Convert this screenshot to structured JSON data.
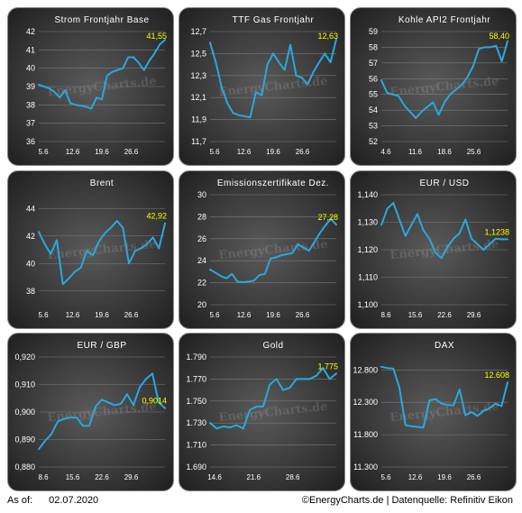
{
  "footer": {
    "as_of_label": "As of:",
    "as_of_date": "02.07.2020",
    "source": "©EnergyCharts.de | Datenquelle: Refinitiv Eikon"
  },
  "watermark": "EnergyCharts.de",
  "colors": {
    "line": "#29a8e0",
    "last_value": "#ffff00",
    "text": "#ffffff",
    "grid": "#7a7a7a"
  },
  "chart_data": [
    {
      "type": "line",
      "title": "Strom Frontjahr Base",
      "x_ticks": [
        "5.6",
        "12.6",
        "19.6",
        "26.6"
      ],
      "y_ticks": [
        "36",
        "37",
        "38",
        "39",
        "40",
        "41",
        "42"
      ],
      "ylim": [
        36,
        42
      ],
      "last_label": "41,55",
      "values": [
        39.1,
        39.0,
        38.9,
        38.7,
        38.4,
        38.8,
        38.1,
        38.0,
        37.95,
        37.9,
        37.8,
        38.4,
        38.3,
        39.6,
        39.8,
        39.9,
        40.0,
        40.6,
        40.6,
        40.3,
        39.9,
        40.4,
        40.8,
        41.3,
        41.55
      ]
    },
    {
      "type": "line",
      "title": "TTF Gas Frontjahr",
      "x_ticks": [
        "5.6",
        "12.6",
        "19.6",
        "26.6"
      ],
      "y_ticks": [
        "11,7",
        "11,9",
        "12,1",
        "12,3",
        "12,5",
        "12,7"
      ],
      "ylim": [
        11.7,
        12.7
      ],
      "last_label": "12,63",
      "values": [
        12.6,
        12.42,
        12.2,
        12.05,
        11.96,
        11.94,
        11.93,
        11.92,
        12.15,
        12.12,
        12.4,
        12.5,
        12.42,
        12.35,
        12.58,
        12.3,
        12.28,
        12.22,
        12.33,
        12.42,
        12.5,
        12.42,
        12.63
      ]
    },
    {
      "type": "line",
      "title": "Kohle API2 Frontjahr",
      "x_ticks": [
        "4.6",
        "11.6",
        "18.6",
        "25.6"
      ],
      "y_ticks": [
        "52",
        "53",
        "54",
        "55",
        "56",
        "57",
        "58",
        "59"
      ],
      "ylim": [
        52,
        59
      ],
      "last_label": "58,40",
      "values": [
        55.9,
        55.1,
        55.0,
        54.9,
        54.3,
        53.9,
        53.5,
        53.9,
        54.2,
        54.5,
        53.7,
        54.5,
        55.0,
        55.3,
        55.6,
        56.1,
        56.8,
        57.9,
        58.0,
        58.0,
        58.1,
        57.1,
        58.4
      ]
    },
    {
      "type": "line",
      "title": "Brent",
      "x_ticks": [
        "5.6",
        "12.6",
        "19.6",
        "26.6"
      ],
      "y_ticks": [
        "38",
        "40",
        "42",
        "44"
      ],
      "ylim": [
        37,
        45
      ],
      "last_label": "42,92",
      "values": [
        42.3,
        41.4,
        40.7,
        41.7,
        38.5,
        38.9,
        39.4,
        39.7,
        40.9,
        40.6,
        41.6,
        42.2,
        42.6,
        43.1,
        42.6,
        40.0,
        40.9,
        41.1,
        41.4,
        41.9,
        41.1,
        42.92
      ]
    },
    {
      "type": "line",
      "title": "Emissionszertifikate Dez.",
      "x_ticks": [
        "5.6",
        "12.6",
        "19.6",
        "26.6"
      ],
      "y_ticks": [
        "20",
        "22",
        "24",
        "26",
        "28",
        "30"
      ],
      "ylim": [
        20,
        30
      ],
      "last_label": "27,28",
      "values": [
        23.2,
        22.9,
        22.6,
        22.4,
        22.8,
        22.1,
        22.05,
        22.1,
        22.2,
        22.7,
        22.8,
        24.2,
        24.3,
        24.5,
        24.6,
        24.7,
        25.5,
        25.2,
        24.9,
        25.7,
        26.5,
        27.2,
        27.8,
        27.28
      ]
    },
    {
      "type": "line",
      "title": "EUR / USD",
      "x_ticks": [
        "8.6",
        "15.6",
        "22.6",
        "29.6"
      ],
      "y_ticks": [
        "1,100",
        "1,110",
        "1,120",
        "1,130",
        "1,140"
      ],
      "ylim": [
        1.1,
        1.14
      ],
      "last_label": "1,1238",
      "values": [
        1.129,
        1.135,
        1.137,
        1.131,
        1.125,
        1.129,
        1.133,
        1.127,
        1.124,
        1.119,
        1.117,
        1.121,
        1.124,
        1.126,
        1.131,
        1.124,
        1.122,
        1.12,
        1.122,
        1.124,
        1.1238,
        1.1238
      ]
    },
    {
      "type": "line",
      "title": "EUR / GBP",
      "x_ticks": [
        "8.6",
        "15.6",
        "22.6",
        "29.6"
      ],
      "y_ticks": [
        "0,880",
        "0,890",
        "0,900",
        "0,910",
        "0,920"
      ],
      "ylim": [
        0.88,
        0.92
      ],
      "last_label": "0,9014",
      "values": [
        0.8865,
        0.8895,
        0.892,
        0.8965,
        0.8975,
        0.898,
        0.898,
        0.895,
        0.895,
        0.902,
        0.9045,
        0.9035,
        0.9025,
        0.903,
        0.9065,
        0.9025,
        0.909,
        0.912,
        0.914,
        0.9035,
        0.9014
      ]
    },
    {
      "type": "line",
      "title": "Gold",
      "x_ticks": [
        "14.6",
        "21.6",
        "28.6"
      ],
      "y_ticks": [
        "1.690",
        "1.710",
        "1.730",
        "1.750",
        "1.770",
        "1.790"
      ],
      "ylim": [
        1690,
        1790
      ],
      "last_label": "1.775",
      "values": [
        1730,
        1725,
        1727,
        1726,
        1728,
        1725,
        1742,
        1745,
        1745,
        1765,
        1770,
        1760,
        1762,
        1770,
        1770,
        1770,
        1773,
        1780,
        1770,
        1775
      ]
    },
    {
      "type": "line",
      "title": "DAX",
      "x_ticks": [
        "5.6",
        "12.6",
        "19.6",
        "26.6"
      ],
      "y_ticks": [
        "11.300",
        "11.800",
        "12.300",
        "12.800"
      ],
      "ylim": [
        11300,
        13000
      ],
      "last_label": "12.608",
      "values": [
        12850,
        12830,
        12820,
        12530,
        11950,
        11930,
        11920,
        11910,
        12330,
        12350,
        12280,
        12260,
        12250,
        12500,
        12100,
        12150,
        12090,
        12170,
        12210,
        12280,
        12240,
        12608
      ]
    }
  ]
}
